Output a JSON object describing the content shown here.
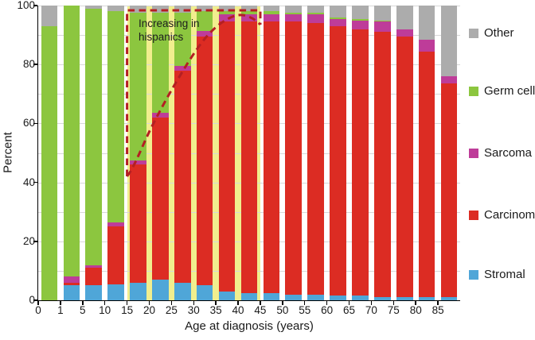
{
  "figure": {
    "y_axis": {
      "label": "Percent",
      "tick_labels": [
        0,
        20,
        40,
        60,
        80,
        100
      ],
      "gridline_step": 10
    },
    "x_axis": {
      "label": "Age at diagnosis (years)",
      "ticks": [
        "0",
        "1",
        "5",
        "10",
        "15",
        "20",
        "25",
        "30",
        "35",
        "40",
        "45",
        "50",
        "55",
        "60",
        "65",
        "70",
        "75",
        "80",
        "85"
      ]
    },
    "annotation": {
      "text": "Increasing in\nhispanics",
      "color": "#b41f23"
    },
    "highlight_band": {
      "color": "#f1ee8e",
      "from_tick": 4,
      "to_tick": 10
    }
  },
  "legend": [
    {
      "label": "Other",
      "color": "#acacac"
    },
    {
      "label": "Germ cell",
      "color": "#8cc63f"
    },
    {
      "label": "Sarcoma",
      "color": "#be3c99"
    },
    {
      "label": "Carcinoma",
      "color": "#dc2c23"
    },
    {
      "label": "Stromal",
      "color": "#4fa6d8"
    }
  ],
  "chart_data": {
    "type": "bar",
    "stacked": true,
    "title": "",
    "xlabel": "Age at diagnosis (years)",
    "ylabel": "Percent",
    "ylim": [
      0,
      100
    ],
    "grid": true,
    "legend_position": "right",
    "categories": [
      "0",
      "1-4",
      "5-9",
      "10-14",
      "15-19",
      "20-24",
      "25-29",
      "30-34",
      "35-39",
      "40-44",
      "45-49",
      "50-54",
      "55-59",
      "60-64",
      "65-69",
      "70-74",
      "75-79",
      "80-84",
      "85+"
    ],
    "series": [
      {
        "name": "Stromal",
        "color": "#4fa6d8",
        "values": [
          0,
          5,
          5,
          5.5,
          6,
          7,
          6,
          5,
          3,
          2.5,
          2.5,
          2,
          2,
          1.5,
          1.5,
          1,
          1,
          1,
          1
        ]
      },
      {
        "name": "Carcinoma",
        "color": "#dc2c23",
        "values": [
          0,
          1,
          6,
          19.5,
          40,
          55,
          72,
          84.5,
          91.5,
          92,
          92,
          92.5,
          92,
          91.5,
          90.5,
          90,
          88.5,
          83.5,
          72.5
        ]
      },
      {
        "name": "Sarcoma",
        "color": "#be3c99",
        "values": [
          0,
          2,
          1,
          1.5,
          1.5,
          1.5,
          1.5,
          2,
          2.5,
          2.5,
          2.5,
          2.5,
          3,
          2.5,
          3,
          3.5,
          2.5,
          4,
          2.5
        ]
      },
      {
        "name": "Germ cell",
        "color": "#8cc63f",
        "values": [
          93,
          92,
          87,
          71.5,
          50,
          34,
          18,
          6.5,
          1,
          1,
          1,
          0.5,
          0.5,
          0.5,
          0.5,
          0.5,
          0,
          0,
          0
        ]
      },
      {
        "name": "Other",
        "color": "#acacac",
        "values": [
          7,
          0,
          1,
          2,
          2.5,
          2.5,
          2.5,
          2,
          2,
          2,
          2,
          2.5,
          2.5,
          4,
          4.5,
          5,
          8,
          11.5,
          24
        ]
      }
    ]
  }
}
